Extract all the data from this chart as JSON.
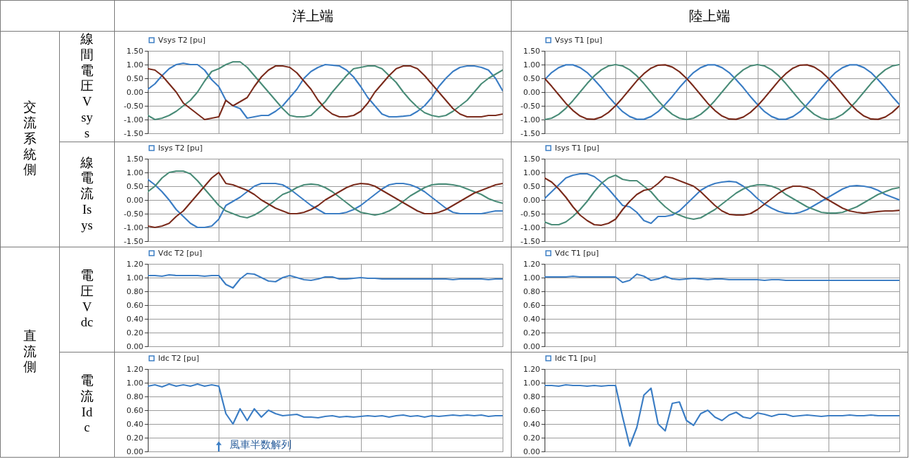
{
  "chart_data": [
    {
      "type": "line",
      "title": "洋上端",
      "ylabel": "線間電圧Vsys",
      "annotations": [
        "交流系統側"
      ],
      "legend": "top left",
      "grid": true,
      "tick_labels": "y",
      "categories": [
        null,
        null,
        null,
        null,
        null,
        null,
        null,
        null,
        null,
        null,
        null,
        null,
        null,
        null,
        null,
        null,
        null,
        null,
        null,
        null,
        null,
        null,
        null,
        null,
        null,
        null,
        null,
        null,
        null,
        null,
        null,
        null,
        null,
        null,
        null,
        null,
        null,
        null,
        null,
        null,
        null,
        null,
        null,
        null,
        null,
        null,
        null,
        null,
        null,
        null,
        null
      ],
      "ylim": [
        -1.5,
        1.5
      ],
      "yticks": [
        {
          "value": -1.5,
          "label": "-1.50"
        },
        {
          "value": -1,
          "label": "-1.00"
        },
        {
          "value": -0.5,
          "label": "-0.50"
        },
        {
          "value": 0,
          "label": "0.00"
        },
        {
          "value": 0.5,
          "label": "0.50"
        },
        {
          "value": 1,
          "label": "1.00"
        },
        {
          "value": 1.5,
          "label": "1.50"
        }
      ],
      "series": [
        {
          "name": "Vsys T2 [pu]",
          "color": "#3b7dc4",
          "values": [
            0.1,
            0.3,
            0.6,
            0.85,
            1.0,
            1.05,
            1.0,
            1.0,
            0.8,
            0.45,
            0.2,
            -0.3,
            -0.5,
            -0.6,
            -0.95,
            -0.9,
            -0.85,
            -0.85,
            -0.7,
            -0.5,
            -0.2,
            0.1,
            0.5,
            0.75,
            0.9,
            1.0,
            0.98,
            0.95,
            0.8,
            0.55,
            0.2,
            -0.2,
            -0.5,
            -0.8,
            -0.9,
            -0.9,
            -0.88,
            -0.85,
            -0.7,
            -0.5,
            -0.2,
            0.2,
            0.5,
            0.75,
            0.9,
            0.95,
            0.95,
            0.9,
            0.8,
            0.5,
            0.05
          ]
        },
        {
          "color": "#4a8c78",
          "values": [
            -0.85,
            -1.0,
            -0.95,
            -0.85,
            -0.7,
            -0.5,
            -0.3,
            0.0,
            0.4,
            0.75,
            0.85,
            1.0,
            1.1,
            1.1,
            0.9,
            0.6,
            0.3,
            0.0,
            -0.3,
            -0.6,
            -0.85,
            -0.9,
            -0.9,
            -0.85,
            -0.6,
            -0.35,
            0.0,
            0.3,
            0.6,
            0.85,
            0.9,
            0.95,
            0.95,
            0.85,
            0.6,
            0.35,
            0.0,
            -0.3,
            -0.55,
            -0.75,
            -0.85,
            -0.9,
            -0.85,
            -0.7,
            -0.5,
            -0.3,
            0.0,
            0.3,
            0.5,
            0.65,
            0.8
          ]
        },
        {
          "color": "#7a2b1c",
          "values": [
            0.85,
            0.8,
            0.6,
            0.3,
            0.0,
            -0.4,
            -0.6,
            -0.8,
            -1.0,
            -0.95,
            -0.9,
            -0.3,
            -0.5,
            -0.35,
            -0.2,
            0.2,
            0.55,
            0.8,
            0.95,
            0.95,
            0.9,
            0.7,
            0.4,
            0.1,
            -0.3,
            -0.6,
            -0.8,
            -0.9,
            -0.9,
            -0.85,
            -0.7,
            -0.4,
            0.0,
            0.3,
            0.6,
            0.85,
            0.95,
            0.95,
            0.85,
            0.6,
            0.3,
            0.0,
            -0.3,
            -0.6,
            -0.8,
            -0.9,
            -0.9,
            -0.9,
            -0.85,
            -0.85,
            -0.8
          ]
        }
      ]
    },
    {
      "type": "line",
      "title": "陸上端",
      "legend": "top left",
      "grid": true,
      "tick_labels": "y",
      "categories": [
        null,
        null,
        null,
        null,
        null,
        null,
        null,
        null,
        null,
        null,
        null,
        null,
        null,
        null,
        null,
        null,
        null,
        null,
        null,
        null,
        null,
        null,
        null,
        null,
        null,
        null,
        null,
        null,
        null,
        null,
        null,
        null,
        null,
        null,
        null,
        null,
        null,
        null,
        null,
        null,
        null,
        null,
        null,
        null,
        null,
        null,
        null,
        null,
        null,
        null,
        null
      ],
      "ylim": [
        -1.5,
        1.5
      ],
      "yticks": [
        {
          "value": -1.5,
          "label": "-1.50"
        },
        {
          "value": -1,
          "label": "-1.00"
        },
        {
          "value": -0.5,
          "label": "-0.50"
        },
        {
          "value": 0,
          "label": "0.00"
        },
        {
          "value": 0.5,
          "label": "0.50"
        },
        {
          "value": 1,
          "label": "1.00"
        },
        {
          "value": 1.5,
          "label": "1.50"
        }
      ],
      "series": [
        {
          "name": "Vsys T1 [pu]",
          "color": "#3b7dc4",
          "values": [
            0.45,
            0.71,
            0.89,
            0.99,
            0.99,
            0.89,
            0.71,
            0.45,
            0.16,
            -0.16,
            -0.45,
            -0.71,
            -0.89,
            -0.99,
            -0.99,
            -0.89,
            -0.71,
            -0.45,
            -0.16,
            0.16,
            0.45,
            0.71,
            0.89,
            0.99,
            0.99,
            0.89,
            0.71,
            0.45,
            0.16,
            -0.16,
            -0.45,
            -0.71,
            -0.89,
            -0.99,
            -0.99,
            -0.89,
            -0.71,
            -0.45,
            -0.16,
            0.16,
            0.45,
            0.71,
            0.89,
            0.99,
            0.99,
            0.89,
            0.71,
            0.45,
            0.16,
            -0.16,
            -0.45
          ]
        },
        {
          "color": "#4a8c78",
          "values": [
            -1,
            -0.95,
            -0.81,
            -0.59,
            -0.31,
            0,
            0.31,
            0.59,
            0.81,
            0.95,
            1,
            0.95,
            0.81,
            0.59,
            0.31,
            0,
            -0.31,
            -0.59,
            -0.81,
            -0.95,
            -1,
            -0.95,
            -0.81,
            -0.59,
            -0.31,
            0,
            0.31,
            0.59,
            0.81,
            0.95,
            1,
            0.95,
            0.81,
            0.59,
            0.31,
            0,
            -0.31,
            -0.59,
            -0.81,
            -0.95,
            -1,
            -0.95,
            -0.81,
            -0.59,
            -0.31,
            0,
            0.31,
            0.59,
            0.81,
            0.95,
            1
          ]
        },
        {
          "color": "#7a2b1c",
          "values": [
            0.5,
            0.21,
            -0.1,
            -0.41,
            -0.67,
            -0.87,
            -0.98,
            -0.99,
            -0.91,
            -0.74,
            -0.5,
            -0.21,
            0.1,
            0.41,
            0.67,
            0.87,
            0.98,
            0.99,
            0.91,
            0.74,
            0.5,
            0.21,
            -0.1,
            -0.41,
            -0.67,
            -0.87,
            -0.98,
            -0.99,
            -0.91,
            -0.74,
            -0.5,
            -0.21,
            0.1,
            0.41,
            0.67,
            0.87,
            0.98,
            0.99,
            0.91,
            0.74,
            0.5,
            0.21,
            -0.1,
            -0.41,
            -0.67,
            -0.87,
            -0.98,
            -0.99,
            -0.91,
            -0.74,
            -0.5
          ]
        }
      ]
    },
    {
      "type": "line",
      "ylabel": "線電流Isys",
      "legend": "top left",
      "grid": true,
      "tick_labels": "y",
      "categories": [
        null,
        null,
        null,
        null,
        null,
        null,
        null,
        null,
        null,
        null,
        null,
        null,
        null,
        null,
        null,
        null,
        null,
        null,
        null,
        null,
        null,
        null,
        null,
        null,
        null,
        null,
        null,
        null,
        null,
        null,
        null,
        null,
        null,
        null,
        null,
        null,
        null,
        null,
        null,
        null,
        null,
        null,
        null,
        null,
        null,
        null,
        null,
        null,
        null,
        null,
        null
      ],
      "ylim": [
        -1.5,
        1.5
      ],
      "yticks": [
        {
          "value": -1.5,
          "label": "-1.50"
        },
        {
          "value": -1,
          "label": "-1.00"
        },
        {
          "value": -0.5,
          "label": "-0.50"
        },
        {
          "value": 0,
          "label": "0.00"
        },
        {
          "value": 0.5,
          "label": "0.50"
        },
        {
          "value": 1,
          "label": "1.00"
        },
        {
          "value": 1.5,
          "label": "1.50"
        }
      ],
      "series": [
        {
          "name": "Isys T2 [pu]",
          "color": "#3b7dc4",
          "values": [
            0.75,
            0.55,
            0.3,
            0.0,
            -0.35,
            -0.6,
            -0.85,
            -1.0,
            -1.0,
            -0.95,
            -0.7,
            -0.2,
            -0.05,
            0.1,
            0.3,
            0.5,
            0.6,
            0.6,
            0.6,
            0.55,
            0.4,
            0.2,
            0.0,
            -0.2,
            -0.35,
            -0.5,
            -0.5,
            -0.5,
            -0.45,
            -0.35,
            -0.2,
            0.0,
            0.2,
            0.4,
            0.55,
            0.6,
            0.6,
            0.55,
            0.45,
            0.3,
            0.1,
            -0.1,
            -0.3,
            -0.45,
            -0.5,
            -0.5,
            -0.5,
            -0.5,
            -0.45,
            -0.4,
            -0.4
          ]
        },
        {
          "color": "#4a8c78",
          "values": [
            0.3,
            0.5,
            0.8,
            1.0,
            1.05,
            1.05,
            0.95,
            0.7,
            0.4,
            0.1,
            -0.2,
            -0.4,
            -0.5,
            -0.6,
            -0.65,
            -0.55,
            -0.4,
            -0.2,
            0.0,
            0.2,
            0.3,
            0.45,
            0.55,
            0.58,
            0.55,
            0.45,
            0.3,
            0.1,
            -0.1,
            -0.3,
            -0.45,
            -0.5,
            -0.55,
            -0.5,
            -0.4,
            -0.25,
            -0.05,
            0.15,
            0.3,
            0.45,
            0.55,
            0.58,
            0.58,
            0.55,
            0.5,
            0.4,
            0.3,
            0.2,
            0.05,
            -0.05,
            -0.12
          ]
        },
        {
          "color": "#7a2b1c",
          "values": [
            -0.95,
            -1.0,
            -0.95,
            -0.85,
            -0.6,
            -0.4,
            -0.1,
            0.2,
            0.5,
            0.8,
            1.0,
            0.6,
            0.55,
            0.45,
            0.35,
            0.2,
            0.0,
            -0.15,
            -0.3,
            -0.4,
            -0.5,
            -0.5,
            -0.45,
            -0.35,
            -0.2,
            0.0,
            0.15,
            0.3,
            0.45,
            0.55,
            0.6,
            0.58,
            0.5,
            0.35,
            0.2,
            0.05,
            -0.1,
            -0.25,
            -0.4,
            -0.5,
            -0.5,
            -0.45,
            -0.35,
            -0.2,
            -0.05,
            0.1,
            0.25,
            0.35,
            0.45,
            0.55,
            0.6
          ]
        }
      ]
    },
    {
      "type": "line",
      "legend": "top left",
      "grid": true,
      "tick_labels": "y",
      "categories": [
        null,
        null,
        null,
        null,
        null,
        null,
        null,
        null,
        null,
        null,
        null,
        null,
        null,
        null,
        null,
        null,
        null,
        null,
        null,
        null,
        null,
        null,
        null,
        null,
        null,
        null,
        null,
        null,
        null,
        null,
        null,
        null,
        null,
        null,
        null,
        null,
        null,
        null,
        null,
        null,
        null,
        null,
        null,
        null,
        null,
        null,
        null,
        null,
        null,
        null,
        null
      ],
      "ylim": [
        -1.5,
        1.5
      ],
      "yticks": [
        {
          "value": -1.5,
          "label": "-1.50"
        },
        {
          "value": -1,
          "label": "-1.00"
        },
        {
          "value": -0.5,
          "label": "-0.50"
        },
        {
          "value": 0,
          "label": "0.00"
        },
        {
          "value": 0.5,
          "label": "0.50"
        },
        {
          "value": 1,
          "label": "1.00"
        },
        {
          "value": 1.5,
          "label": "1.50"
        }
      ],
      "series": [
        {
          "name": "Isys T1 [pu]",
          "color": "#3b7dc4",
          "values": [
            0.05,
            0.3,
            0.55,
            0.8,
            0.9,
            0.95,
            0.95,
            0.85,
            0.65,
            0.4,
            0.1,
            -0.2,
            -0.25,
            -0.45,
            -0.75,
            -0.85,
            -0.6,
            -0.6,
            -0.55,
            -0.4,
            -0.15,
            0.1,
            0.35,
            0.5,
            0.6,
            0.65,
            0.68,
            0.65,
            0.5,
            0.3,
            0.05,
            -0.15,
            -0.3,
            -0.42,
            -0.48,
            -0.5,
            -0.45,
            -0.35,
            -0.2,
            -0.05,
            0.1,
            0.25,
            0.4,
            0.5,
            0.52,
            0.5,
            0.45,
            0.35,
            0.2,
            0.1,
            0.0
          ]
        },
        {
          "color": "#4a8c78",
          "values": [
            -0.8,
            -0.9,
            -0.9,
            -0.8,
            -0.6,
            -0.35,
            -0.05,
            0.3,
            0.6,
            0.8,
            0.9,
            0.75,
            0.7,
            0.7,
            0.5,
            0.3,
            0.0,
            -0.25,
            -0.45,
            -0.55,
            -0.65,
            -0.7,
            -0.65,
            -0.5,
            -0.35,
            -0.15,
            0.05,
            0.25,
            0.4,
            0.5,
            0.55,
            0.55,
            0.5,
            0.4,
            0.2,
            0.05,
            -0.1,
            -0.25,
            -0.35,
            -0.45,
            -0.48,
            -0.48,
            -0.45,
            -0.35,
            -0.25,
            -0.1,
            0.05,
            0.2,
            0.3,
            0.4,
            0.45
          ]
        },
        {
          "color": "#7a2b1c",
          "values": [
            0.8,
            0.65,
            0.4,
            0.1,
            -0.25,
            -0.55,
            -0.75,
            -0.9,
            -0.92,
            -0.85,
            -0.7,
            -0.35,
            -0.05,
            0.2,
            0.35,
            0.4,
            0.6,
            0.85,
            0.8,
            0.7,
            0.6,
            0.5,
            0.3,
            0.05,
            -0.2,
            -0.4,
            -0.52,
            -0.55,
            -0.55,
            -0.5,
            -0.35,
            -0.15,
            0.05,
            0.25,
            0.4,
            0.5,
            0.5,
            0.45,
            0.35,
            0.15,
            0.0,
            -0.15,
            -0.3,
            -0.4,
            -0.45,
            -0.48,
            -0.45,
            -0.42,
            -0.4,
            -0.4,
            -0.38
          ]
        }
      ]
    },
    {
      "type": "line",
      "ylabel": "電圧Vdc",
      "annotations": [
        "直流側"
      ],
      "legend": "top left",
      "grid": true,
      "tick_labels": "y",
      "categories": [
        null,
        null,
        null,
        null,
        null,
        null,
        null,
        null,
        null,
        null,
        null,
        null,
        null,
        null,
        null,
        null,
        null,
        null,
        null,
        null,
        null,
        null,
        null,
        null,
        null,
        null,
        null,
        null,
        null,
        null,
        null,
        null,
        null,
        null,
        null,
        null,
        null,
        null,
        null,
        null,
        null,
        null,
        null,
        null,
        null,
        null,
        null,
        null,
        null,
        null,
        null
      ],
      "ylim": [
        0,
        1.2
      ],
      "yticks": [
        {
          "value": 0,
          "label": "0.00"
        },
        {
          "value": 0.2,
          "label": "0.20"
        },
        {
          "value": 0.4,
          "label": "0.40"
        },
        {
          "value": 0.6,
          "label": "0.60"
        },
        {
          "value": 0.8,
          "label": "0.80"
        },
        {
          "value": 1,
          "label": "1.00"
        },
        {
          "value": 1.2,
          "label": "1.20"
        }
      ],
      "series": [
        {
          "name": "Vdc T2 [pu]",
          "color": "#3b7dc4",
          "values": [
            1.03,
            1.03,
            1.02,
            1.04,
            1.03,
            1.03,
            1.03,
            1.03,
            1.02,
            1.03,
            1.03,
            0.9,
            0.85,
            0.98,
            1.06,
            1.05,
            1.0,
            0.95,
            0.94,
            1.0,
            1.03,
            1.0,
            0.97,
            0.96,
            0.98,
            1.01,
            1.01,
            0.98,
            0.98,
            0.99,
            1.0,
            0.99,
            0.99,
            0.98,
            0.98,
            0.98,
            0.98,
            0.98,
            0.98,
            0.98,
            0.98,
            0.98,
            0.98,
            0.97,
            0.98,
            0.98,
            0.98,
            0.98,
            0.97,
            0.98,
            0.98
          ]
        }
      ]
    },
    {
      "type": "line",
      "legend": "top left",
      "grid": true,
      "tick_labels": "y",
      "categories": [
        null,
        null,
        null,
        null,
        null,
        null,
        null,
        null,
        null,
        null,
        null,
        null,
        null,
        null,
        null,
        null,
        null,
        null,
        null,
        null,
        null,
        null,
        null,
        null,
        null,
        null,
        null,
        null,
        null,
        null,
        null,
        null,
        null,
        null,
        null,
        null,
        null,
        null,
        null,
        null,
        null,
        null,
        null,
        null,
        null,
        null,
        null,
        null,
        null,
        null,
        null
      ],
      "ylim": [
        0,
        1.2
      ],
      "yticks": [
        {
          "value": 0,
          "label": "0.00"
        },
        {
          "value": 0.2,
          "label": "0.20"
        },
        {
          "value": 0.4,
          "label": "0.40"
        },
        {
          "value": 0.6,
          "label": "0.60"
        },
        {
          "value": 0.8,
          "label": "0.80"
        },
        {
          "value": 1,
          "label": "1.00"
        },
        {
          "value": 1.2,
          "label": "1.20"
        }
      ],
      "series": [
        {
          "name": "Vdc T1 [pu]",
          "color": "#3b7dc4",
          "values": [
            1.01,
            1.01,
            1.01,
            1.01,
            1.02,
            1.01,
            1.01,
            1.01,
            1.01,
            1.01,
            1.01,
            0.93,
            0.96,
            1.05,
            1.02,
            0.96,
            0.98,
            1.02,
            0.98,
            0.97,
            0.98,
            0.99,
            0.98,
            0.97,
            0.98,
            0.98,
            0.97,
            0.97,
            0.97,
            0.97,
            0.97,
            0.96,
            0.97,
            0.97,
            0.96,
            0.96,
            0.96,
            0.96,
            0.96,
            0.96,
            0.96,
            0.96,
            0.96,
            0.96,
            0.96,
            0.96,
            0.96,
            0.96,
            0.96,
            0.96,
            0.96
          ]
        }
      ]
    },
    {
      "type": "line",
      "ylabel": "電流Idc",
      "annotations": [
        "風車半数解列"
      ],
      "legend": "top left",
      "grid": true,
      "tick_labels": "y",
      "categories": [
        null,
        null,
        null,
        null,
        null,
        null,
        null,
        null,
        null,
        null,
        null,
        null,
        null,
        null,
        null,
        null,
        null,
        null,
        null,
        null,
        null,
        null,
        null,
        null,
        null,
        null,
        null,
        null,
        null,
        null,
        null,
        null,
        null,
        null,
        null,
        null,
        null,
        null,
        null,
        null,
        null,
        null,
        null,
        null,
        null,
        null,
        null,
        null,
        null,
        null,
        null
      ],
      "ylim": [
        0,
        1.2
      ],
      "yticks": [
        {
          "value": 0,
          "label": "0.00"
        },
        {
          "value": 0.2,
          "label": "0.20"
        },
        {
          "value": 0.4,
          "label": "0.40"
        },
        {
          "value": 0.6,
          "label": "0.60"
        },
        {
          "value": 0.8,
          "label": "0.80"
        },
        {
          "value": 1,
          "label": "1.00"
        },
        {
          "value": 1.2,
          "label": "1.20"
        }
      ],
      "series": [
        {
          "name": "Idc T2 [pu]",
          "color": "#3b7dc4",
          "values": [
            0.95,
            0.97,
            0.94,
            0.98,
            0.95,
            0.97,
            0.95,
            0.98,
            0.95,
            0.97,
            0.95,
            0.55,
            0.4,
            0.62,
            0.45,
            0.62,
            0.5,
            0.6,
            0.55,
            0.52,
            0.53,
            0.54,
            0.5,
            0.5,
            0.49,
            0.51,
            0.52,
            0.5,
            0.51,
            0.5,
            0.51,
            0.52,
            0.51,
            0.52,
            0.5,
            0.52,
            0.53,
            0.51,
            0.52,
            0.5,
            0.52,
            0.51,
            0.52,
            0.53,
            0.52,
            0.53,
            0.52,
            0.53,
            0.51,
            0.52,
            0.52
          ]
        }
      ]
    },
    {
      "type": "line",
      "legend": "top left",
      "grid": true,
      "tick_labels": "y",
      "categories": [
        null,
        null,
        null,
        null,
        null,
        null,
        null,
        null,
        null,
        null,
        null,
        null,
        null,
        null,
        null,
        null,
        null,
        null,
        null,
        null,
        null,
        null,
        null,
        null,
        null,
        null,
        null,
        null,
        null,
        null,
        null,
        null,
        null,
        null,
        null,
        null,
        null,
        null,
        null,
        null,
        null,
        null,
        null,
        null,
        null,
        null,
        null,
        null,
        null,
        null,
        null
      ],
      "ylim": [
        0,
        1.2
      ],
      "yticks": [
        {
          "value": 0,
          "label": "0.00"
        },
        {
          "value": 0.2,
          "label": "0.20"
        },
        {
          "value": 0.4,
          "label": "0.40"
        },
        {
          "value": 0.6,
          "label": "0.60"
        },
        {
          "value": 0.8,
          "label": "0.80"
        },
        {
          "value": 1,
          "label": "1.00"
        },
        {
          "value": 1.2,
          "label": "1.20"
        }
      ],
      "series": [
        {
          "name": "Idc T1 [pu]",
          "color": "#3b7dc4",
          "values": [
            0.96,
            0.96,
            0.95,
            0.97,
            0.96,
            0.96,
            0.95,
            0.96,
            0.95,
            0.96,
            0.96,
            0.5,
            0.08,
            0.35,
            0.82,
            0.92,
            0.4,
            0.3,
            0.7,
            0.72,
            0.45,
            0.38,
            0.55,
            0.6,
            0.5,
            0.45,
            0.53,
            0.57,
            0.5,
            0.48,
            0.56,
            0.54,
            0.51,
            0.54,
            0.54,
            0.51,
            0.52,
            0.53,
            0.52,
            0.51,
            0.52,
            0.52,
            0.52,
            0.53,
            0.52,
            0.52,
            0.53,
            0.52,
            0.52,
            0.52,
            0.52
          ]
        }
      ]
    }
  ]
}
